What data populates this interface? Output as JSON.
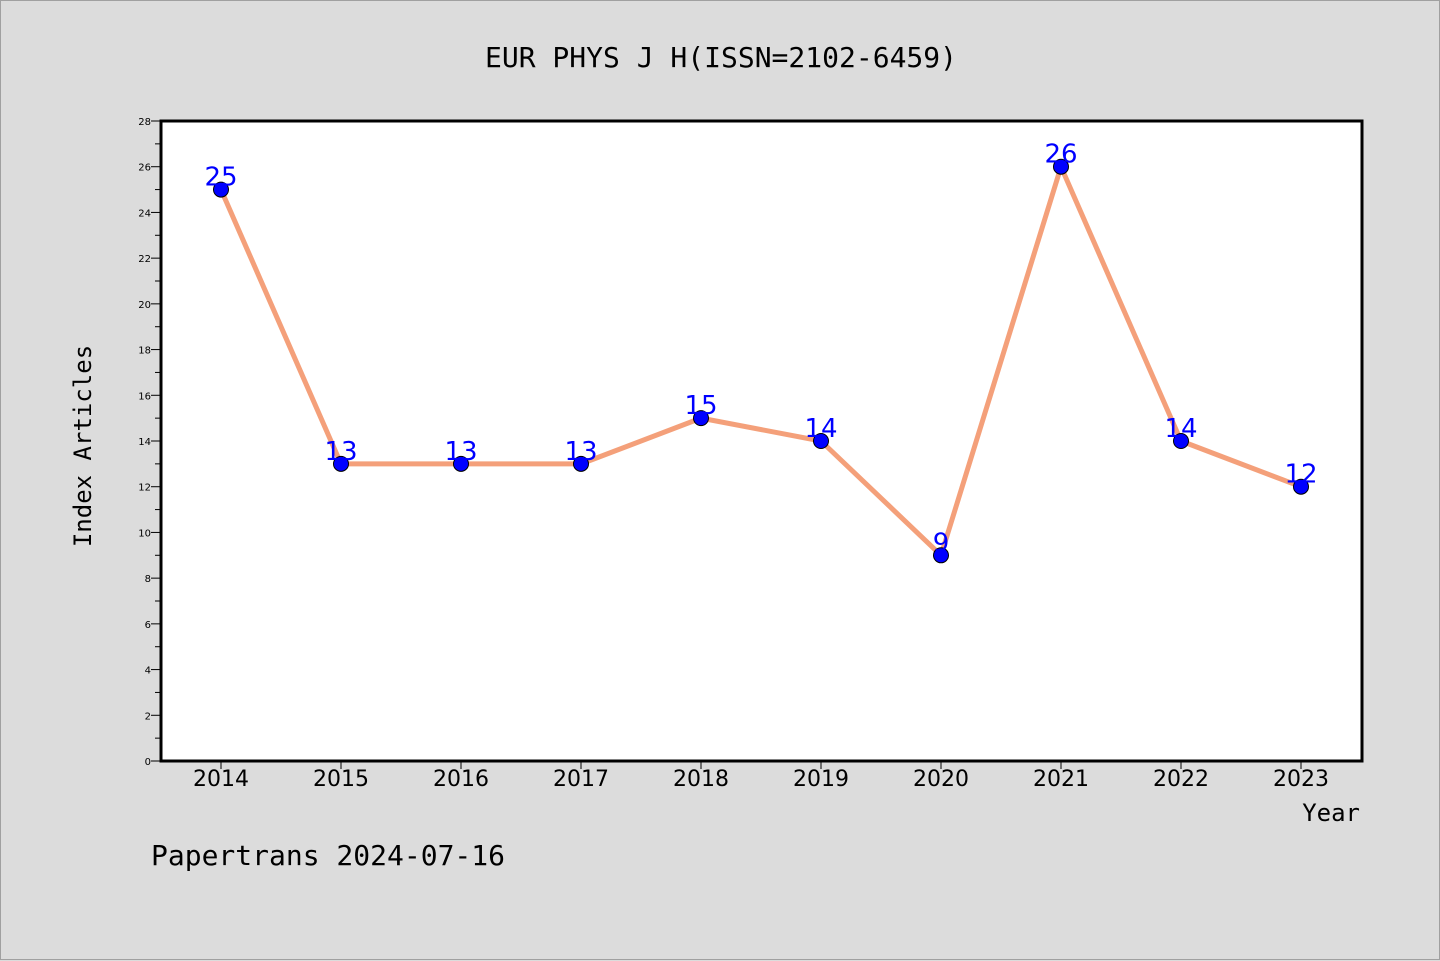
{
  "chart_data": {
    "type": "line",
    "title": "EUR PHYS J H(ISSN=2102-6459)",
    "xlabel": "Year",
    "ylabel": "Index Articles",
    "categories": [
      "2014",
      "2015",
      "2016",
      "2017",
      "2018",
      "2019",
      "2020",
      "2021",
      "2022",
      "2023"
    ],
    "values": [
      25,
      13,
      13,
      13,
      15,
      14,
      9,
      26,
      14,
      12
    ],
    "ylim": [
      0,
      28
    ],
    "yticks": [
      "0",
      "2",
      "4",
      "6",
      "8",
      "10",
      "12",
      "14",
      "16",
      "18",
      "20",
      "22",
      "24",
      "26",
      "28"
    ],
    "grid": false,
    "line_color": "#f4a07a",
    "marker_color": "#0000ff",
    "label_color": "#0000ff"
  },
  "footer": "Papertrans 2024-07-16"
}
